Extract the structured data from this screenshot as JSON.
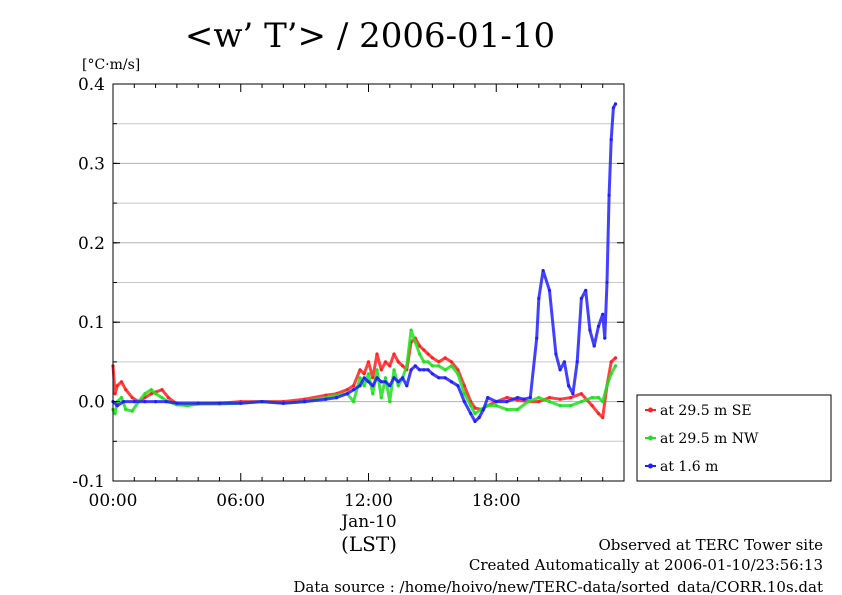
{
  "chart_data": {
    "type": "line",
    "title": "<w’ T’> / 2006-01-10",
    "ylabel": "[°C·m/s]",
    "xlabel": "(LST)",
    "xlim": [
      0,
      24
    ],
    "ylim": [
      -0.1,
      0.4
    ],
    "x_ticks": [
      {
        "value": 0,
        "label": "00:00"
      },
      {
        "value": 6,
        "label": "06:00"
      },
      {
        "value": 12,
        "label": "12:00"
      },
      {
        "value": 18,
        "label": "18:00"
      }
    ],
    "x_date_label": "Jan-10",
    "y_ticks": [
      {
        "value": -0.1,
        "label": "-0.1"
      },
      {
        "value": 0.0,
        "label": "0.0"
      },
      {
        "value": 0.1,
        "label": "0.1"
      },
      {
        "value": 0.2,
        "label": "0.2"
      },
      {
        "value": 0.3,
        "label": "0.3"
      },
      {
        "value": 0.4,
        "label": "0.4"
      }
    ],
    "grid": true,
    "legend_position": "right",
    "series": [
      {
        "name": "at 29.5 m SE",
        "color": "#ff2020",
        "x": [
          0,
          0.1,
          0.2,
          0.4,
          0.6,
          0.9,
          1.2,
          1.5,
          1.8,
          2.0,
          2.3,
          2.6,
          3.0,
          3.5,
          4.0,
          5.0,
          6.0,
          7.0,
          8.0,
          9.0,
          10.0,
          10.5,
          11.0,
          11.3,
          11.6,
          11.8,
          12.0,
          12.2,
          12.4,
          12.6,
          12.8,
          13.0,
          13.2,
          13.4,
          13.6,
          13.8,
          14.0,
          14.2,
          14.4,
          14.6,
          14.8,
          15.0,
          15.3,
          15.6,
          15.9,
          16.2,
          16.5,
          16.8,
          17.0,
          17.3,
          17.6,
          18.0,
          18.5,
          19.0,
          19.5,
          20.0,
          20.5,
          21.0,
          21.5,
          22.0,
          22.5,
          22.8,
          23.0,
          23.2,
          23.4,
          23.6
        ],
        "values": [
          0.045,
          0.01,
          0.02,
          0.025,
          0.015,
          0.005,
          0.0,
          0.005,
          0.01,
          0.012,
          0.015,
          0.005,
          -0.003,
          -0.004,
          -0.003,
          -0.002,
          0.0,
          0.0,
          0.0,
          0.003,
          0.008,
          0.01,
          0.015,
          0.02,
          0.04,
          0.035,
          0.05,
          0.03,
          0.06,
          0.04,
          0.05,
          0.045,
          0.06,
          0.05,
          0.045,
          0.04,
          0.075,
          0.08,
          0.07,
          0.065,
          0.06,
          0.055,
          0.05,
          0.055,
          0.05,
          0.04,
          0.02,
          0.0,
          -0.008,
          -0.01,
          -0.005,
          0.0,
          0.005,
          0.002,
          0.0,
          0.0,
          0.005,
          0.003,
          0.005,
          0.01,
          -0.005,
          -0.015,
          -0.02,
          0.02,
          0.05,
          0.055
        ]
      },
      {
        "name": "at 29.5 m NW",
        "color": "#20e020",
        "x": [
          0,
          0.1,
          0.2,
          0.4,
          0.6,
          0.9,
          1.2,
          1.5,
          1.8,
          2.0,
          2.3,
          2.6,
          3.0,
          3.5,
          4.0,
          5.0,
          6.0,
          7.0,
          8.0,
          9.0,
          10.0,
          10.5,
          11.0,
          11.3,
          11.6,
          11.8,
          12.0,
          12.2,
          12.4,
          12.6,
          12.8,
          13.0,
          13.2,
          13.4,
          13.6,
          13.8,
          14.0,
          14.2,
          14.4,
          14.6,
          14.8,
          15.0,
          15.3,
          15.6,
          15.9,
          16.2,
          16.5,
          16.8,
          17.0,
          17.3,
          17.6,
          18.0,
          18.5,
          19.0,
          19.5,
          20.0,
          20.5,
          21.0,
          21.5,
          22.0,
          22.5,
          22.8,
          23.0,
          23.2,
          23.4,
          23.6
        ],
        "values": [
          -0.01,
          -0.015,
          0.0,
          0.005,
          -0.01,
          -0.012,
          0.0,
          0.01,
          0.015,
          0.01,
          0.005,
          0.0,
          -0.004,
          -0.005,
          -0.003,
          -0.003,
          -0.002,
          0.0,
          -0.002,
          0.0,
          0.005,
          0.008,
          0.01,
          0.0,
          0.03,
          0.02,
          0.035,
          0.01,
          0.04,
          0.005,
          0.03,
          0.0,
          0.04,
          0.02,
          0.03,
          0.045,
          0.09,
          0.075,
          0.06,
          0.05,
          0.05,
          0.045,
          0.045,
          0.04,
          0.045,
          0.035,
          0.01,
          -0.005,
          -0.015,
          -0.01,
          -0.005,
          -0.005,
          -0.01,
          -0.01,
          0.0,
          0.005,
          0.0,
          -0.005,
          -0.005,
          0.0,
          0.005,
          0.005,
          0.0,
          0.02,
          0.035,
          0.045
        ]
      },
      {
        "name": "at 1.6 m",
        "color": "#2020ff",
        "x": [
          0,
          0.2,
          0.5,
          1.0,
          1.5,
          2.0,
          2.5,
          3.0,
          4.0,
          5.0,
          6.0,
          7.0,
          8.0,
          9.0,
          10.0,
          10.5,
          11.0,
          11.3,
          11.6,
          11.8,
          12.0,
          12.2,
          12.4,
          12.6,
          12.8,
          13.0,
          13.2,
          13.4,
          13.6,
          13.8,
          14.0,
          14.2,
          14.4,
          14.6,
          14.8,
          15.0,
          15.3,
          15.6,
          15.9,
          16.2,
          16.5,
          16.8,
          17.0,
          17.2,
          17.4,
          17.6,
          18.0,
          18.5,
          19.0,
          19.3,
          19.6,
          19.9,
          20.0,
          20.2,
          20.5,
          20.8,
          21.0,
          21.2,
          21.4,
          21.6,
          21.8,
          22.0,
          22.2,
          22.4,
          22.6,
          22.8,
          23.0,
          23.1,
          23.2,
          23.3,
          23.4,
          23.5,
          23.6
        ],
        "values": [
          0.0,
          -0.005,
          0.0,
          0.0,
          0.0,
          0.0,
          0.0,
          -0.002,
          -0.002,
          -0.002,
          -0.002,
          0.0,
          -0.002,
          0.0,
          0.003,
          0.005,
          0.01,
          0.015,
          0.02,
          0.03,
          0.025,
          0.02,
          0.03,
          0.025,
          0.025,
          0.02,
          0.03,
          0.025,
          0.03,
          0.02,
          0.04,
          0.045,
          0.04,
          0.04,
          0.04,
          0.035,
          0.03,
          0.03,
          0.025,
          0.02,
          0.0,
          -0.015,
          -0.025,
          -0.02,
          -0.01,
          0.005,
          0.0,
          0.0,
          0.005,
          0.003,
          0.005,
          0.08,
          0.13,
          0.165,
          0.14,
          0.06,
          0.04,
          0.05,
          0.02,
          0.01,
          0.05,
          0.13,
          0.14,
          0.09,
          0.07,
          0.095,
          0.11,
          0.08,
          0.15,
          0.26,
          0.33,
          0.37,
          0.375
        ]
      }
    ]
  },
  "footer": {
    "line1": "Observed at TERC Tower site",
    "line2": "Created Automatically at 2006-01-10/23:56:13",
    "line3": "Data source : /home/hoivo/new/TERC-data/sorted_data/CORR.10s.dat"
  }
}
